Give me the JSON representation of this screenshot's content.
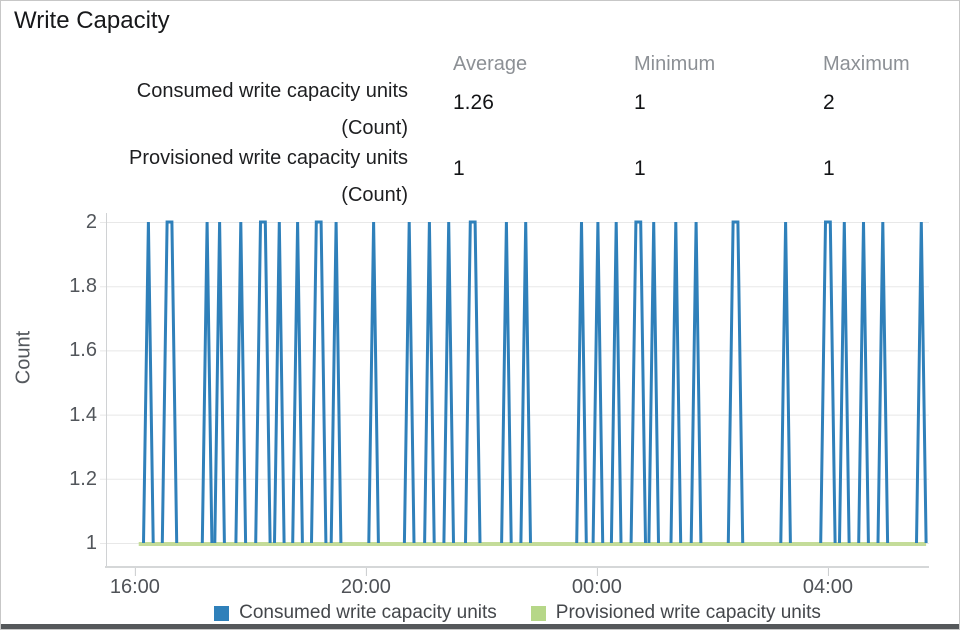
{
  "title": "Write Capacity",
  "stats": {
    "columns": [
      "Average",
      "Minimum",
      "Maximum"
    ],
    "rows": [
      {
        "label": "Consumed write capacity units",
        "unit": "(Count)",
        "average": "1.26",
        "minimum": "1",
        "maximum": "2"
      },
      {
        "label": "Provisioned write capacity units",
        "unit": "(Count)",
        "average": "1",
        "minimum": "1",
        "maximum": "1"
      }
    ]
  },
  "legend": {
    "items": [
      {
        "label": "Consumed write capacity units",
        "color": "#2f80ba"
      },
      {
        "label": "Provisioned write capacity units",
        "color": "#b6d788"
      }
    ]
  },
  "chart_data": {
    "type": "line",
    "title": "Write Capacity",
    "ylabel": "Count",
    "ylim": [
      1,
      2
    ],
    "y_ticks": [
      {
        "value": 1,
        "label": "1"
      },
      {
        "value": 1.2,
        "label": "1.2"
      },
      {
        "value": 1.4,
        "label": "1.4"
      },
      {
        "value": 1.6,
        "label": "1.6"
      },
      {
        "value": 1.8,
        "label": "1.8"
      },
      {
        "value": 2,
        "label": "2"
      }
    ],
    "grid": true,
    "legend_position": "bottom",
    "x_window": {
      "start_label": "15:30",
      "end_label": "05:45",
      "minutes": 855
    },
    "x_ticks": [
      {
        "label": "16:00",
        "t": 30
      },
      {
        "label": "20:00",
        "t": 270
      },
      {
        "label": "00:00",
        "t": 510
      },
      {
        "label": "04:00",
        "t": 750
      }
    ],
    "series": [
      {
        "name": "Consumed write capacity units",
        "color": "#2f80ba",
        "baseline": 1,
        "peak": 2,
        "period_minutes": 5,
        "spikes": [
          {
            "time": "16:14",
            "t": 44,
            "wide": false
          },
          {
            "time": "16:36",
            "t": 66,
            "wide": true
          },
          {
            "time": "17:15",
            "t": 105,
            "wide": false
          },
          {
            "time": "17:28",
            "t": 118,
            "wide": false
          },
          {
            "time": "17:50",
            "t": 140,
            "wide": false
          },
          {
            "time": "18:13",
            "t": 163,
            "wide": true
          },
          {
            "time": "18:30",
            "t": 180,
            "wide": false
          },
          {
            "time": "18:49",
            "t": 199,
            "wide": false
          },
          {
            "time": "19:11",
            "t": 221,
            "wide": true
          },
          {
            "time": "19:29",
            "t": 239,
            "wide": false
          },
          {
            "time": "20:08",
            "t": 278,
            "wide": false
          },
          {
            "time": "20:45",
            "t": 315,
            "wide": false
          },
          {
            "time": "21:06",
            "t": 336,
            "wide": false
          },
          {
            "time": "21:26",
            "t": 356,
            "wide": false
          },
          {
            "time": "21:51",
            "t": 381,
            "wide": true
          },
          {
            "time": "22:26",
            "t": 416,
            "wide": false
          },
          {
            "time": "22:46",
            "t": 436,
            "wide": false
          },
          {
            "time": "23:44",
            "t": 494,
            "wide": false
          },
          {
            "time": "00:01",
            "t": 511,
            "wide": false
          },
          {
            "time": "00:20",
            "t": 530,
            "wide": false
          },
          {
            "time": "00:43",
            "t": 553,
            "wide": true
          },
          {
            "time": "00:59",
            "t": 569,
            "wide": false
          },
          {
            "time": "01:22",
            "t": 592,
            "wide": false
          },
          {
            "time": "01:43",
            "t": 613,
            "wide": false
          },
          {
            "time": "02:24",
            "t": 654,
            "wide": true
          },
          {
            "time": "03:16",
            "t": 706,
            "wide": false
          },
          {
            "time": "04:00",
            "t": 750,
            "wide": true
          },
          {
            "time": "04:17",
            "t": 767,
            "wide": false
          },
          {
            "time": "04:37",
            "t": 787,
            "wide": false
          },
          {
            "time": "04:57",
            "t": 807,
            "wide": false
          },
          {
            "time": "05:37",
            "t": 847,
            "wide": false
          }
        ]
      },
      {
        "name": "Provisioned write capacity units",
        "color": "#c4dc99",
        "value": 1,
        "t_start": 34,
        "t_end": 852
      }
    ]
  }
}
